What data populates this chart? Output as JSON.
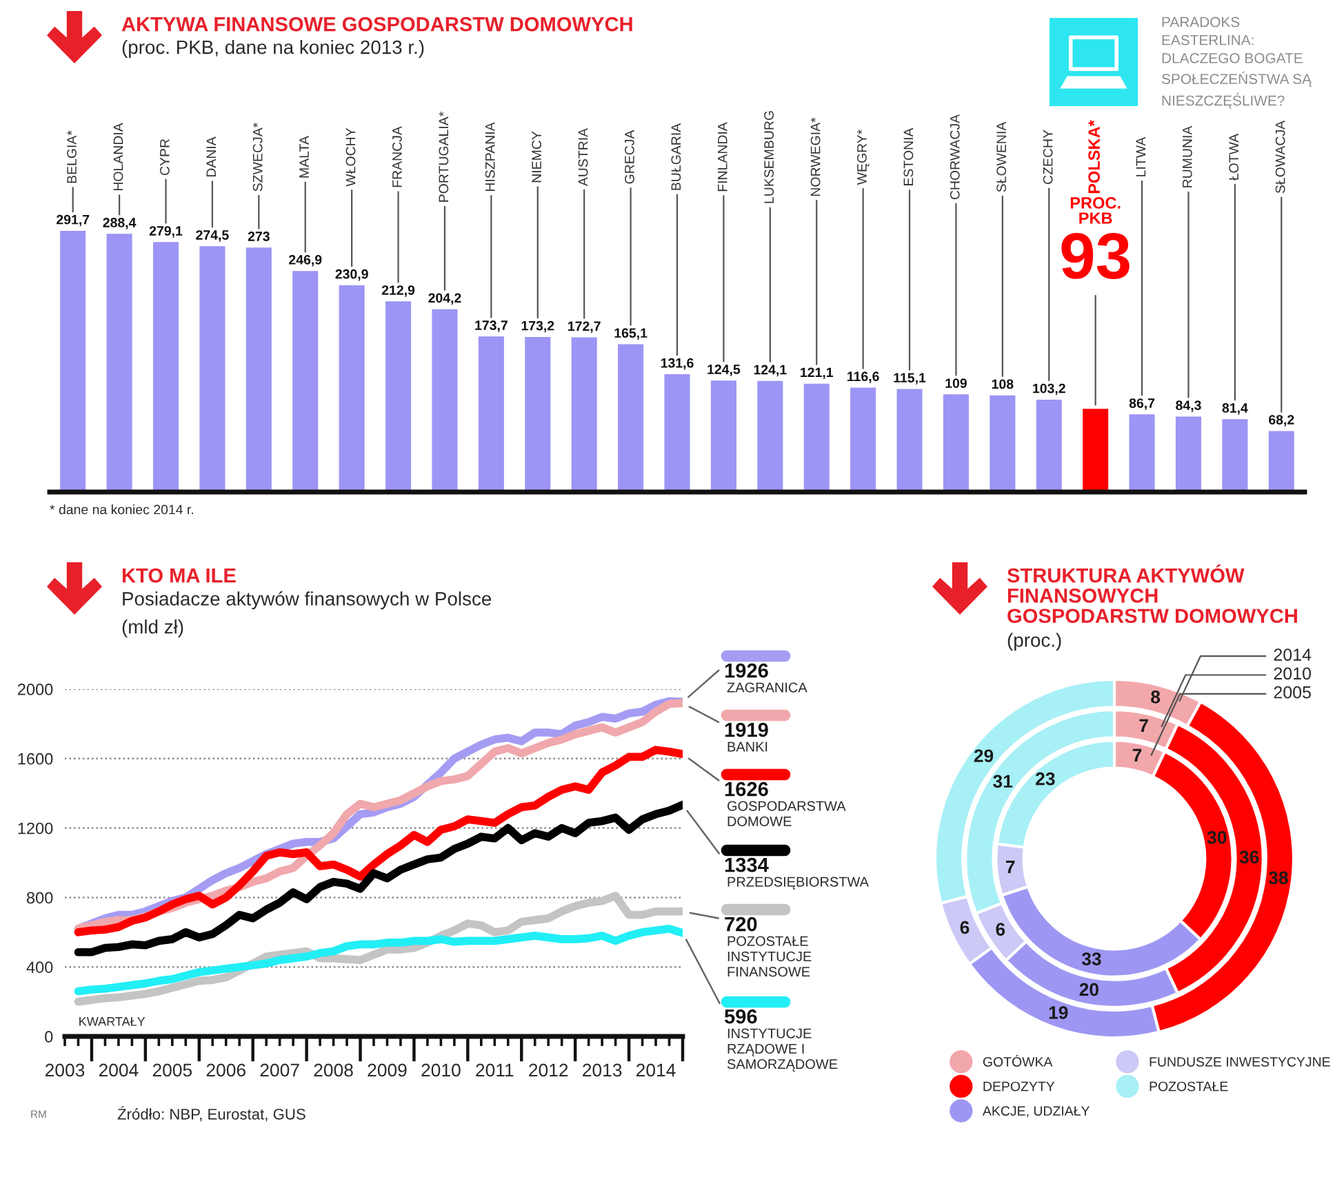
{
  "chart_data": [
    {
      "type": "bar",
      "title": "AKTYWA FINANSOWE GOSPODARSTW DOMOWYCH",
      "subtitle": "(proc. PKB, dane na koniec 2013 r.)",
      "categories": [
        "BELGIA*",
        "HOLANDIA",
        "CYPR",
        "DANIA",
        "SZWECJA*",
        "MALTA",
        "WŁOCHY",
        "FRANCJA",
        "PORTUGALIA*",
        "HISZPANIA",
        "NIEMCY",
        "AUSTRIA",
        "GRECJA",
        "BUŁGARIA",
        "FINLANDIA",
        "LUKSEMBURG",
        "NORWEGIA*",
        "WĘGRY*",
        "ESTONIA",
        "CHORWACJA",
        "SŁOWENIA",
        "CZECHY",
        "POLSKA*",
        "LITWA",
        "RUMUNIA",
        "ŁOTWA",
        "SŁOWACJA"
      ],
      "values": [
        291.7,
        288.4,
        279.1,
        274.5,
        273,
        246.9,
        230.9,
        212.9,
        204.2,
        173.7,
        173.2,
        172.7,
        165.1,
        131.6,
        124.5,
        124.1,
        121.1,
        116.6,
        115.1,
        109,
        108,
        103.2,
        93,
        86.7,
        84.3,
        81.4,
        68.2
      ],
      "value_labels": [
        "291,7",
        "288,4",
        "279,1",
        "274,5",
        "273",
        "246,9",
        "230,9",
        "212,9",
        "204,2",
        "173,7",
        "173,2",
        "172,7",
        "165,1",
        "131,6",
        "124,5",
        "124,1",
        "121,1",
        "116,6",
        "115,1",
        "109",
        "108",
        "103,2",
        "93",
        "86,7",
        "84,3",
        "81,4",
        "68,2"
      ],
      "colors": [
        "#9c95f5",
        "#9c95f5",
        "#9c95f5",
        "#9c95f5",
        "#9c95f5",
        "#9c95f5",
        "#9c95f5",
        "#9c95f5",
        "#9c95f5",
        "#9c95f5",
        "#9c95f5",
        "#9c95f5",
        "#9c95f5",
        "#9c95f5",
        "#9c95f5",
        "#9c95f5",
        "#9c95f5",
        "#9c95f5",
        "#9c95f5",
        "#9c95f5",
        "#9c95f5",
        "#9c95f5",
        "#ff0000",
        "#9c95f5",
        "#9c95f5",
        "#9c95f5",
        "#9c95f5"
      ],
      "annotations": [
        "PARADOKS EASTERLINA: DLACZEGO BOGATE SPOŁECZEŃSTWA SĄ NIESZCZĘŚLIWE?",
        "* dane na koniec 2014 r.",
        "PROC. PKB"
      ]
    },
    {
      "type": "line",
      "title": "KTO MA ILE",
      "subtitle": "Posiadacze aktywów finansowych w Polsce",
      "ylabel": "(mld zł)",
      "xlabel": "KWARTAŁY",
      "x": [
        2003.75,
        2004,
        2004.25,
        2004.5,
        2004.75,
        2005,
        2005.25,
        2005.5,
        2005.75,
        2006,
        2006.25,
        2006.5,
        2006.75,
        2007,
        2007.25,
        2007.5,
        2007.75,
        2008,
        2008.25,
        2008.5,
        2008.75,
        2009,
        2009.25,
        2009.5,
        2009.75,
        2010,
        2010.25,
        2010.5,
        2010.75,
        2011,
        2011.25,
        2011.5,
        2011.75,
        2012,
        2012.25,
        2012.5,
        2012.75,
        2013,
        2013.25,
        2013.5,
        2013.75,
        2014,
        2014.25,
        2014.5,
        2014.75,
        2015
      ],
      "series": [
        {
          "name": "ZAGRANICA",
          "color": "#a49cf3",
          "values": [
            620,
            650,
            680,
            700,
            700,
            720,
            750,
            780,
            800,
            850,
            900,
            940,
            970,
            1010,
            1050,
            1080,
            1110,
            1120,
            1120,
            1140,
            1210,
            1280,
            1290,
            1320,
            1340,
            1380,
            1450,
            1520,
            1600,
            1640,
            1680,
            1710,
            1720,
            1700,
            1750,
            1750,
            1740,
            1790,
            1810,
            1840,
            1830,
            1860,
            1870,
            1910,
            1930,
            1926
          ],
          "value_labels": [
            null,
            null,
            null,
            null,
            null,
            null,
            null,
            null,
            null,
            null,
            null,
            null,
            null,
            null,
            null,
            null,
            null,
            null,
            null,
            null,
            null,
            null,
            null,
            null,
            null,
            null,
            null,
            null,
            null,
            null,
            null,
            null,
            null,
            null,
            null,
            null,
            null,
            null,
            null,
            null,
            null,
            null,
            null,
            null,
            null,
            "1926"
          ]
        },
        {
          "name": "BANKI",
          "color": "#f0a8ac",
          "values": [
            620,
            640,
            660,
            670,
            670,
            690,
            720,
            740,
            770,
            790,
            810,
            840,
            860,
            890,
            910,
            950,
            970,
            1040,
            1100,
            1170,
            1280,
            1340,
            1320,
            1340,
            1360,
            1400,
            1440,
            1470,
            1480,
            1500,
            1570,
            1640,
            1660,
            1630,
            1660,
            1690,
            1710,
            1740,
            1760,
            1780,
            1750,
            1780,
            1810,
            1870,
            1915,
            1919
          ],
          "value_labels": [
            null,
            null,
            null,
            null,
            null,
            null,
            null,
            null,
            null,
            null,
            null,
            null,
            null,
            null,
            null,
            null,
            null,
            null,
            null,
            null,
            null,
            null,
            null,
            null,
            null,
            null,
            null,
            null,
            null,
            null,
            null,
            null,
            null,
            null,
            null,
            null,
            null,
            null,
            null,
            null,
            null,
            null,
            null,
            null,
            null,
            "1919"
          ]
        },
        {
          "name": "GOSPODARSTWA DOMOWE",
          "color": "#ff0000",
          "values": [
            600,
            610,
            615,
            630,
            665,
            685,
            720,
            760,
            790,
            810,
            760,
            800,
            870,
            950,
            1040,
            1060,
            1050,
            1060,
            980,
            990,
            960,
            920,
            990,
            1050,
            1100,
            1160,
            1120,
            1190,
            1210,
            1250,
            1240,
            1230,
            1280,
            1320,
            1330,
            1380,
            1420,
            1440,
            1420,
            1520,
            1560,
            1610,
            1610,
            1650,
            1640,
            1626
          ],
          "value_labels": [
            null,
            null,
            null,
            null,
            null,
            null,
            null,
            null,
            null,
            null,
            null,
            null,
            null,
            null,
            null,
            null,
            null,
            null,
            null,
            null,
            null,
            null,
            null,
            null,
            null,
            null,
            null,
            null,
            null,
            null,
            null,
            null,
            null,
            null,
            null,
            null,
            null,
            null,
            null,
            null,
            null,
            null,
            null,
            null,
            null,
            "1626"
          ]
        },
        {
          "name": "PRZEDSIĘBIORSTWA",
          "color": "#000000",
          "values": [
            485,
            485,
            510,
            515,
            530,
            525,
            550,
            560,
            600,
            570,
            590,
            640,
            700,
            680,
            730,
            770,
            830,
            790,
            860,
            890,
            880,
            850,
            940,
            910,
            960,
            990,
            1020,
            1030,
            1080,
            1110,
            1150,
            1140,
            1200,
            1130,
            1170,
            1150,
            1200,
            1170,
            1230,
            1240,
            1260,
            1190,
            1250,
            1280,
            1300,
            1334
          ],
          "value_labels": [
            null,
            null,
            null,
            null,
            null,
            null,
            null,
            null,
            null,
            null,
            null,
            null,
            null,
            null,
            null,
            null,
            null,
            null,
            null,
            null,
            null,
            null,
            null,
            null,
            null,
            null,
            null,
            null,
            null,
            null,
            null,
            null,
            null,
            null,
            null,
            null,
            null,
            null,
            null,
            null,
            null,
            null,
            null,
            null,
            null,
            "1334"
          ]
        },
        {
          "name": "POZOSTAŁE INSTYTUCJE FINANSOWE",
          "color": "#c4c4c4",
          "values": [
            200,
            210,
            220,
            225,
            235,
            245,
            260,
            280,
            300,
            320,
            325,
            340,
            380,
            420,
            460,
            470,
            480,
            490,
            450,
            450,
            445,
            440,
            470,
            500,
            500,
            510,
            540,
            580,
            610,
            650,
            640,
            600,
            610,
            660,
            670,
            680,
            720,
            750,
            770,
            780,
            810,
            700,
            700,
            720,
            720,
            720
          ],
          "value_labels": [
            null,
            null,
            null,
            null,
            null,
            null,
            null,
            null,
            null,
            null,
            null,
            null,
            null,
            null,
            null,
            null,
            null,
            null,
            null,
            null,
            null,
            null,
            null,
            null,
            null,
            null,
            null,
            null,
            null,
            null,
            null,
            null,
            null,
            null,
            null,
            null,
            null,
            null,
            null,
            null,
            null,
            null,
            null,
            null,
            null,
            "720"
          ]
        },
        {
          "name": "INSTYTUCJE RZĄDOWE I SAMORZĄDOWE",
          "color": "#22eef5",
          "values": [
            260,
            270,
            275,
            285,
            295,
            305,
            320,
            330,
            350,
            370,
            380,
            390,
            400,
            410,
            420,
            440,
            450,
            460,
            480,
            490,
            520,
            530,
            530,
            540,
            540,
            550,
            550,
            560,
            545,
            550,
            550,
            550,
            560,
            570,
            580,
            570,
            560,
            560,
            565,
            580,
            550,
            580,
            600,
            610,
            620,
            596
          ],
          "value_labels": [
            null,
            null,
            null,
            null,
            null,
            null,
            null,
            null,
            null,
            null,
            null,
            null,
            null,
            null,
            null,
            null,
            null,
            null,
            null,
            null,
            null,
            null,
            null,
            null,
            null,
            null,
            null,
            null,
            null,
            null,
            null,
            null,
            null,
            null,
            null,
            null,
            null,
            null,
            null,
            null,
            null,
            null,
            null,
            null,
            null,
            "596"
          ]
        }
      ],
      "xlim": [
        2003.5,
        2015
      ],
      "xticks": [
        {
          "value": 2003.5,
          "label": "2003"
        },
        {
          "value": 2004.5,
          "label": "2004"
        },
        {
          "value": 2005.5,
          "label": "2005"
        },
        {
          "value": 2006.5,
          "label": "2006"
        },
        {
          "value": 2007.5,
          "label": "2007"
        },
        {
          "value": 2008.5,
          "label": "2008"
        },
        {
          "value": 2009.5,
          "label": "2009"
        },
        {
          "value": 2010.5,
          "label": "2010"
        },
        {
          "value": 2011.5,
          "label": "2011"
        },
        {
          "value": 2012.5,
          "label": "2012"
        },
        {
          "value": 2013.5,
          "label": "2013"
        },
        {
          "value": 2014.5,
          "label": "2014"
        }
      ],
      "ylim": [
        0,
        2000
      ],
      "yticks": [
        0,
        400,
        800,
        1200,
        1600,
        2000
      ],
      "grid": "y",
      "legend": "right",
      "annotations": [
        "RM",
        "Źródło: NBP, Eurostat, GUS"
      ]
    },
    {
      "type": "donut",
      "title": "STRUKTURA AKTYWÓW FINANSOWYCH GOSPODARSTW DOMOWYCH",
      "subtitle": "(proc.)",
      "categories": [
        "GOTÓWKA",
        "DEPOZYTY",
        "AKCJE, UDZIAŁY",
        "FUNDUSZE INWESTYCYJNE",
        "POZOSTAŁE"
      ],
      "colors": [
        "#f2a7ab",
        "#ff0000",
        "#9d97f3",
        "#ccc9f6",
        "#a7f0f6"
      ],
      "series": [
        {
          "name": "2014",
          "values": [
            8,
            38,
            19,
            6,
            29
          ]
        },
        {
          "name": "2010",
          "values": [
            7,
            36,
            20,
            6,
            31
          ]
        },
        {
          "name": "2005",
          "values": [
            7,
            30,
            33,
            7,
            23
          ]
        }
      ],
      "data_labels": true,
      "legend": "bottom"
    }
  ]
}
